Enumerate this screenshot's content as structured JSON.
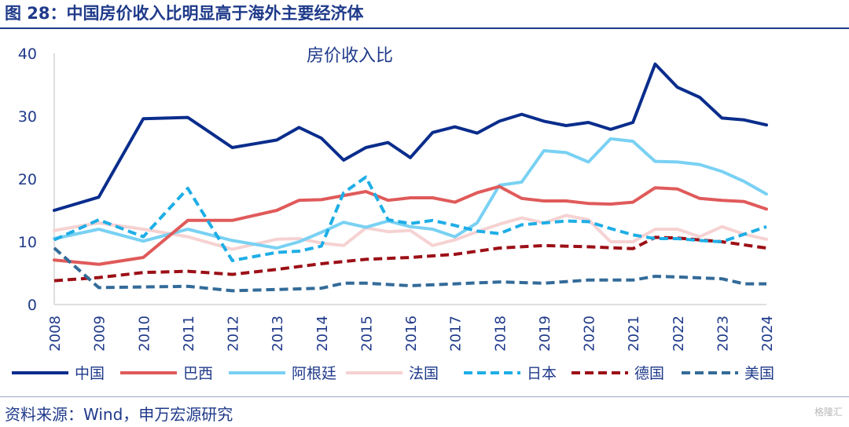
{
  "header": {
    "title": "图 28：中国房价收入比明显高于海外主要经济体"
  },
  "footer": {
    "source": "资料来源：Wind，申万宏源研究",
    "watermark": "格隆汇"
  },
  "chart_data": {
    "type": "line",
    "title": "房价收入比",
    "xlabel": "",
    "ylabel": "",
    "ylim": [
      0,
      40
    ],
    "yticks": [
      0,
      10,
      20,
      30,
      40
    ],
    "xlim": [
      2008,
      2024
    ],
    "xticks": [
      "2008",
      "2009",
      "2010",
      "2011",
      "2012",
      "2013",
      "2014",
      "2015",
      "2016",
      "2017",
      "2018",
      "2019",
      "2020",
      "2021",
      "2022",
      "2023",
      "2024"
    ],
    "grid": false,
    "legend_position": "bottom",
    "series": [
      {
        "name": "中国",
        "color": "#0a2d8c",
        "dash": "solid",
        "x": [
          2008,
          2009,
          2010,
          2011,
          2012,
          2012.5,
          2013,
          2013.5,
          2014,
          2014.5,
          2015,
          2015.5,
          2016,
          2016.5,
          2017,
          2017.5,
          2018,
          2018.5,
          2019,
          2019.5,
          2020,
          2020.5,
          2021,
          2021.5,
          2022,
          2022.5,
          2023,
          2023.5,
          2024
        ],
        "y": [
          15.0,
          17.1,
          29.6,
          29.8,
          25.0,
          25.6,
          26.2,
          28.2,
          26.5,
          23.0,
          25.0,
          25.8,
          23.4,
          27.4,
          28.3,
          27.3,
          29.2,
          30.3,
          29.2,
          28.5,
          29.0,
          27.9,
          29.0,
          38.3,
          34.6,
          33.0,
          29.7,
          29.4,
          28.6
        ]
      },
      {
        "name": "巴西",
        "color": "#e05a5a",
        "dash": "solid",
        "x": [
          2008,
          2009,
          2010,
          2011,
          2012,
          2013,
          2013.5,
          2014,
          2015,
          2015.5,
          2016,
          2016.5,
          2017,
          2017.5,
          2018,
          2018.5,
          2019,
          2019.5,
          2020,
          2020.5,
          2021,
          2021.5,
          2022,
          2022.5,
          2023,
          2023.5,
          2024
        ],
        "y": [
          7.1,
          6.4,
          7.5,
          13.4,
          13.4,
          15.0,
          16.6,
          16.7,
          18.0,
          16.6,
          17.0,
          17.0,
          16.3,
          17.8,
          18.8,
          16.9,
          16.5,
          16.5,
          16.1,
          16.0,
          16.3,
          18.6,
          18.4,
          16.9,
          16.6,
          16.4,
          15.2
        ]
      },
      {
        "name": "阿根廷",
        "color": "#79d1f3",
        "dash": "solid",
        "x": [
          2008,
          2009,
          2010,
          2011,
          2012,
          2013,
          2013.5,
          2014,
          2014.5,
          2015,
          2015.5,
          2016,
          2016.5,
          2017,
          2017.5,
          2018,
          2018.5,
          2019,
          2019.5,
          2020,
          2020.5,
          2021,
          2021.5,
          2022,
          2022.5,
          2023,
          2023.5,
          2024
        ],
        "y": [
          10.5,
          12.0,
          10.1,
          12.0,
          10.2,
          9.0,
          10.0,
          11.5,
          13.1,
          12.3,
          13.3,
          12.4,
          12.0,
          10.8,
          13.0,
          19.0,
          19.5,
          24.5,
          24.2,
          22.7,
          26.4,
          26.0,
          22.8,
          22.7,
          22.3,
          21.2,
          19.6,
          17.6
        ]
      },
      {
        "name": "法国",
        "color": "#f6d2d2",
        "dash": "solid",
        "x": [
          2008,
          2009,
          2010,
          2011,
          2012,
          2013,
          2013.5,
          2014,
          2014.5,
          2015,
          2015.5,
          2016,
          2016.5,
          2017,
          2017.5,
          2018,
          2018.5,
          2019,
          2019.5,
          2020,
          2020.5,
          2021,
          2021.5,
          2022,
          2022.5,
          2023,
          2023.5,
          2024
        ],
        "y": [
          11.8,
          13.0,
          12.0,
          10.8,
          8.8,
          10.4,
          10.5,
          9.8,
          9.4,
          12.2,
          11.6,
          11.8,
          9.4,
          10.3,
          11.6,
          12.8,
          13.8,
          13.0,
          14.2,
          13.5,
          10.0,
          10.0,
          12.0,
          12.0,
          10.8,
          12.4,
          11.2,
          10.4
        ]
      },
      {
        "name": "日本",
        "color": "#1eaee6",
        "dash": "dashed",
        "x": [
          2008,
          2009,
          2010,
          2011,
          2012,
          2013,
          2013.5,
          2014,
          2014.5,
          2015,
          2015.5,
          2016,
          2016.5,
          2017,
          2017.5,
          2018,
          2018.5,
          2019,
          2019.5,
          2020,
          2020.5,
          2021,
          2021.5,
          2022,
          2022.5,
          2023,
          2023.5,
          2024
        ],
        "y": [
          10.3,
          13.5,
          10.8,
          18.5,
          7.0,
          8.3,
          8.5,
          9.3,
          17.8,
          20.3,
          13.5,
          12.9,
          13.4,
          12.6,
          11.7,
          11.3,
          12.7,
          13.0,
          13.3,
          13.2,
          12.1,
          11.1,
          10.5,
          10.5,
          10.2,
          10.0,
          11.2,
          12.4
        ]
      },
      {
        "name": "德国",
        "color": "#9c0f16",
        "dash": "dashed",
        "x": [
          2008,
          2009,
          2010,
          2011,
          2012,
          2013,
          2014,
          2015,
          2016,
          2017,
          2018,
          2019,
          2020,
          2021,
          2021.5,
          2022,
          2023,
          2024
        ],
        "y": [
          3.8,
          4.3,
          5.1,
          5.3,
          4.8,
          5.6,
          6.5,
          7.2,
          7.5,
          8.0,
          9.0,
          9.4,
          9.2,
          8.9,
          10.7,
          10.6,
          10.0,
          9.0
        ]
      },
      {
        "name": "美国",
        "color": "#336b99",
        "dash": "dashed",
        "x": [
          2008,
          2009,
          2010,
          2011,
          2012,
          2013,
          2014,
          2014.5,
          2015,
          2016,
          2017,
          2018,
          2019,
          2020,
          2021,
          2021.5,
          2022,
          2023,
          2023.5,
          2024
        ],
        "y": [
          9.0,
          2.7,
          2.8,
          2.9,
          2.2,
          2.4,
          2.6,
          3.4,
          3.4,
          3.0,
          3.3,
          3.6,
          3.4,
          3.9,
          3.9,
          4.5,
          4.4,
          4.1,
          3.3,
          3.3
        ]
      }
    ]
  }
}
